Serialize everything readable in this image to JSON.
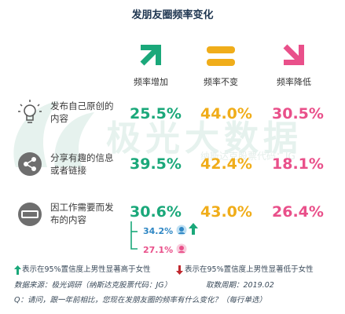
{
  "title": "发朋友圈频率变化",
  "watermark": {
    "text": "极光大数据",
    "sub": "纳斯达克股票代码：JG"
  },
  "colors": {
    "increase": "#1aa87a",
    "same": "#f0ad1a",
    "decrease": "#e9508a",
    "male": "#2f87c4",
    "female": "#e9508a"
  },
  "chart_data": {
    "type": "table",
    "title": "发朋友圈频率变化",
    "columns": [
      "频率增加",
      "频率不变",
      "频率降低"
    ],
    "rows": [
      {
        "label": "发布自己原创的内容",
        "values": [
          "25.5%",
          "44.0%",
          "30.5%"
        ],
        "icon": "lightbulb-icon"
      },
      {
        "label": "分享有趣的信息或者链接",
        "values": [
          "39.5%",
          "42.4%",
          "18.1%"
        ],
        "icon": "share-icon"
      },
      {
        "label": "因工作需要而发布的内容",
        "values": [
          "30.6%",
          "43.0%",
          "26.4%"
        ],
        "icon": "sale-tag-icon"
      }
    ],
    "breakdown": {
      "row": "因工作需要而发布的内容",
      "column": "频率增加",
      "male": "34.2%",
      "female": "27.1%"
    }
  },
  "legend": {
    "higher": "表示在95%置信度上男性显著高于女性",
    "lower": "表示在95%置信度上男性显著低于女性"
  },
  "footer": {
    "source": "数据来源：极光调研（纳斯达克股票代码：JG）",
    "period": "取数周期：2019.02",
    "question": "Q：请问，跟一年前相比，您现在发朋友圈的频率有什么变化？（每行单选）"
  }
}
